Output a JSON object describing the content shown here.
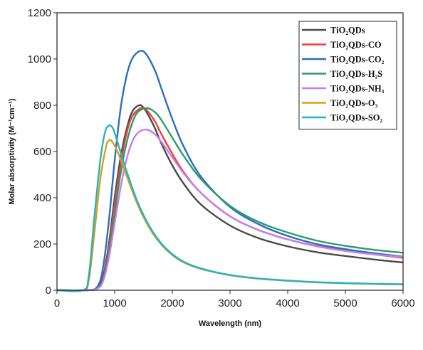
{
  "chart_data": {
    "type": "line",
    "xlabel": "Wavelength (nm)",
    "ylabel": "Molar absorptivity (M⁻¹cm⁻¹)",
    "xlim": [
      0,
      6000
    ],
    "ylim": [
      0,
      1200
    ],
    "xticks": [
      "0",
      "1000",
      "2000",
      "3000",
      "4000",
      "5000",
      "6000"
    ],
    "yticks": [
      "0",
      "200",
      "400",
      "600",
      "800",
      "1000",
      "1200"
    ],
    "grid": false,
    "legend_position": "top-right",
    "series": [
      {
        "name": "TiO₂QDs",
        "color": "#4a4a4a",
        "points": [
          [
            0,
            0
          ],
          [
            500,
            0
          ],
          [
            700,
            10
          ],
          [
            800,
            60
          ],
          [
            900,
            200
          ],
          [
            1000,
            400
          ],
          [
            1100,
            570
          ],
          [
            1200,
            690
          ],
          [
            1300,
            770
          ],
          [
            1420,
            800
          ],
          [
            1500,
            790
          ],
          [
            1600,
            750
          ],
          [
            1700,
            700
          ],
          [
            1800,
            640
          ],
          [
            2000,
            540
          ],
          [
            2200,
            460
          ],
          [
            2500,
            370
          ],
          [
            3000,
            280
          ],
          [
            3500,
            225
          ],
          [
            4000,
            190
          ],
          [
            4500,
            165
          ],
          [
            5000,
            148
          ],
          [
            5500,
            133
          ],
          [
            6000,
            120
          ]
        ]
      },
      {
        "name": "TiO₂QDs-CO",
        "color": "#e8443c",
        "points": [
          [
            0,
            0
          ],
          [
            500,
            0
          ],
          [
            700,
            8
          ],
          [
            800,
            50
          ],
          [
            900,
            180
          ],
          [
            1000,
            370
          ],
          [
            1100,
            540
          ],
          [
            1200,
            670
          ],
          [
            1300,
            750
          ],
          [
            1450,
            788
          ],
          [
            1550,
            780
          ],
          [
            1700,
            730
          ],
          [
            1800,
            680
          ],
          [
            2000,
            590
          ],
          [
            2200,
            510
          ],
          [
            2500,
            420
          ],
          [
            3000,
            320
          ],
          [
            3500,
            260
          ],
          [
            4000,
            220
          ],
          [
            4500,
            192
          ],
          [
            5000,
            172
          ],
          [
            5500,
            155
          ],
          [
            6000,
            140
          ]
        ]
      },
      {
        "name": "TiO₂QDs-CO₂",
        "color": "#2b6cc4",
        "points": [
          [
            0,
            0
          ],
          [
            500,
            0
          ],
          [
            700,
            15
          ],
          [
            800,
            100
          ],
          [
            900,
            300
          ],
          [
            1000,
            560
          ],
          [
            1100,
            780
          ],
          [
            1200,
            920
          ],
          [
            1300,
            1000
          ],
          [
            1440,
            1035
          ],
          [
            1550,
            1020
          ],
          [
            1700,
            950
          ],
          [
            1800,
            880
          ],
          [
            2000,
            740
          ],
          [
            2200,
            620
          ],
          [
            2500,
            490
          ],
          [
            3000,
            360
          ],
          [
            3500,
            285
          ],
          [
            4000,
            235
          ],
          [
            4500,
            200
          ],
          [
            5000,
            178
          ],
          [
            5500,
            160
          ],
          [
            6000,
            145
          ]
        ]
      },
      {
        "name": "TiO₂QDs-H₂S",
        "color": "#2a9c6a",
        "points": [
          [
            0,
            0
          ],
          [
            500,
            0
          ],
          [
            700,
            8
          ],
          [
            800,
            45
          ],
          [
            900,
            160
          ],
          [
            1000,
            330
          ],
          [
            1100,
            500
          ],
          [
            1200,
            630
          ],
          [
            1300,
            720
          ],
          [
            1400,
            770
          ],
          [
            1560,
            788
          ],
          [
            1700,
            770
          ],
          [
            1800,
            740
          ],
          [
            2000,
            660
          ],
          [
            2200,
            580
          ],
          [
            2500,
            480
          ],
          [
            3000,
            365
          ],
          [
            3500,
            295
          ],
          [
            4000,
            250
          ],
          [
            4500,
            215
          ],
          [
            5000,
            192
          ],
          [
            5500,
            175
          ],
          [
            6000,
            162
          ]
        ]
      },
      {
        "name": "TiO₂QDs-NH₃",
        "color": "#c77ce8",
        "points": [
          [
            0,
            0
          ],
          [
            500,
            0
          ],
          [
            700,
            7
          ],
          [
            800,
            40
          ],
          [
            900,
            140
          ],
          [
            1000,
            290
          ],
          [
            1100,
            440
          ],
          [
            1200,
            560
          ],
          [
            1300,
            640
          ],
          [
            1400,
            680
          ],
          [
            1550,
            695
          ],
          [
            1700,
            675
          ],
          [
            1800,
            645
          ],
          [
            2000,
            575
          ],
          [
            2200,
            505
          ],
          [
            2500,
            420
          ],
          [
            3000,
            320
          ],
          [
            3500,
            260
          ],
          [
            4000,
            220
          ],
          [
            4500,
            190
          ],
          [
            5000,
            170
          ],
          [
            5500,
            155
          ],
          [
            6000,
            143
          ]
        ]
      },
      {
        "name": "TiO₂QDs-O₃",
        "color": "#d9a019",
        "points": [
          [
            0,
            0
          ],
          [
            450,
            0
          ],
          [
            550,
            40
          ],
          [
            650,
            250
          ],
          [
            750,
            480
          ],
          [
            850,
            620
          ],
          [
            900,
            648
          ],
          [
            950,
            645
          ],
          [
            1050,
            600
          ],
          [
            1200,
            500
          ],
          [
            1400,
            370
          ],
          [
            1600,
            270
          ],
          [
            1800,
            200
          ],
          [
            2000,
            152
          ],
          [
            2200,
            120
          ],
          [
            2500,
            92
          ],
          [
            3000,
            65
          ],
          [
            3500,
            50
          ],
          [
            4000,
            41
          ],
          [
            4500,
            34
          ],
          [
            5000,
            30
          ],
          [
            5500,
            27
          ],
          [
            6000,
            25
          ]
        ]
      },
      {
        "name": "TiO₂QDs-SO₂",
        "color": "#24b3c4",
        "points": [
          [
            0,
            0
          ],
          [
            450,
            0
          ],
          [
            550,
            60
          ],
          [
            650,
            320
          ],
          [
            750,
            560
          ],
          [
            830,
            680
          ],
          [
            900,
            712
          ],
          [
            970,
            700
          ],
          [
            1050,
            640
          ],
          [
            1200,
            520
          ],
          [
            1400,
            380
          ],
          [
            1600,
            278
          ],
          [
            1800,
            205
          ],
          [
            2000,
            156
          ],
          [
            2200,
            123
          ],
          [
            2500,
            94
          ],
          [
            3000,
            66
          ],
          [
            3500,
            51
          ],
          [
            4000,
            42
          ],
          [
            4500,
            35
          ],
          [
            5000,
            31
          ],
          [
            5500,
            28
          ],
          [
            6000,
            26
          ]
        ]
      }
    ]
  }
}
